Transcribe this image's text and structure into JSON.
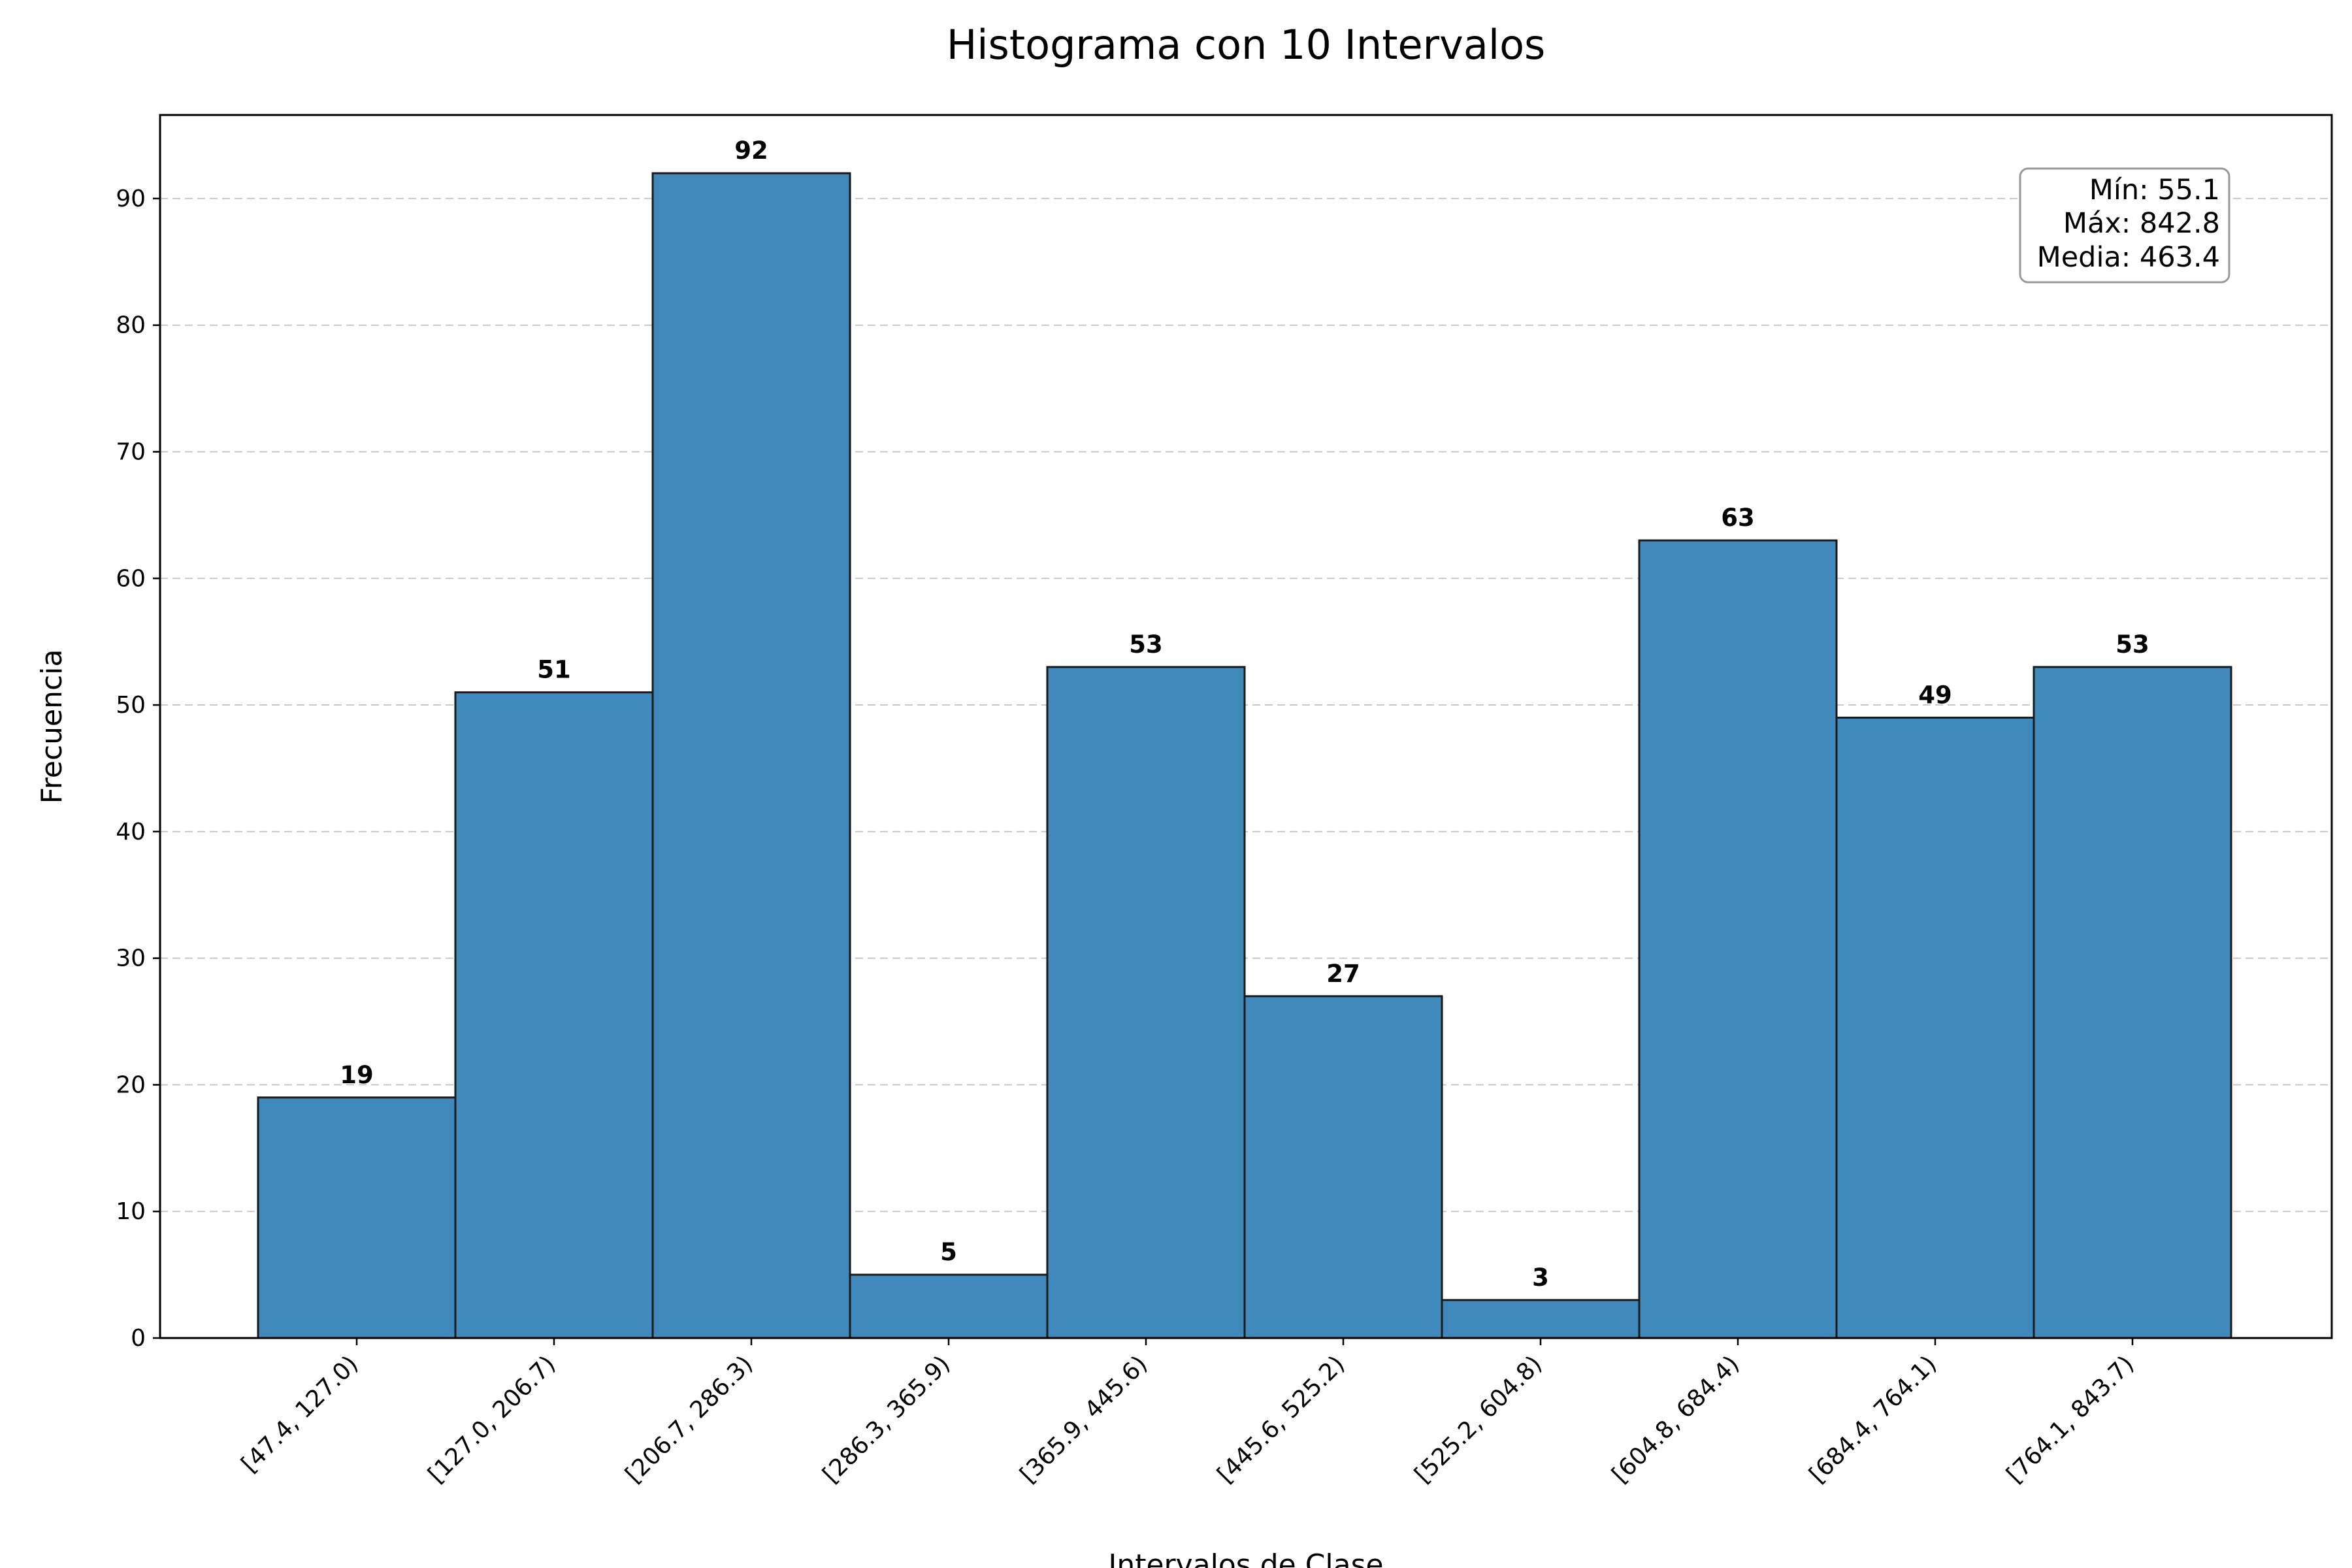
{
  "chart_data": {
    "type": "bar",
    "title": "Histograma con 10 Intervalos",
    "xlabel": "Intervalos de Clase",
    "ylabel": "Frecuencia",
    "categories": [
      "[47.4, 127.0)",
      "[127.0, 206.7)",
      "[206.7, 286.3)",
      "[286.3, 365.9)",
      "[365.9, 445.6)",
      "[445.6, 525.2)",
      "[525.2, 604.8)",
      "[604.8, 684.4)",
      "[684.4, 764.1)",
      "[764.1, 843.7)"
    ],
    "values": [
      19,
      51,
      92,
      5,
      53,
      27,
      3,
      63,
      49,
      53
    ],
    "ylim": [
      0,
      96.6
    ],
    "yticks": [
      0,
      10,
      20,
      30,
      40,
      50,
      60,
      70,
      80,
      90
    ],
    "grid": true,
    "bar_color": "#4189bd",
    "edge_color": "#1a1a1a",
    "stats_box": {
      "min": "Mín: 55.1",
      "max": "Máx: 842.8",
      "mean": "Media: 463.4"
    }
  }
}
